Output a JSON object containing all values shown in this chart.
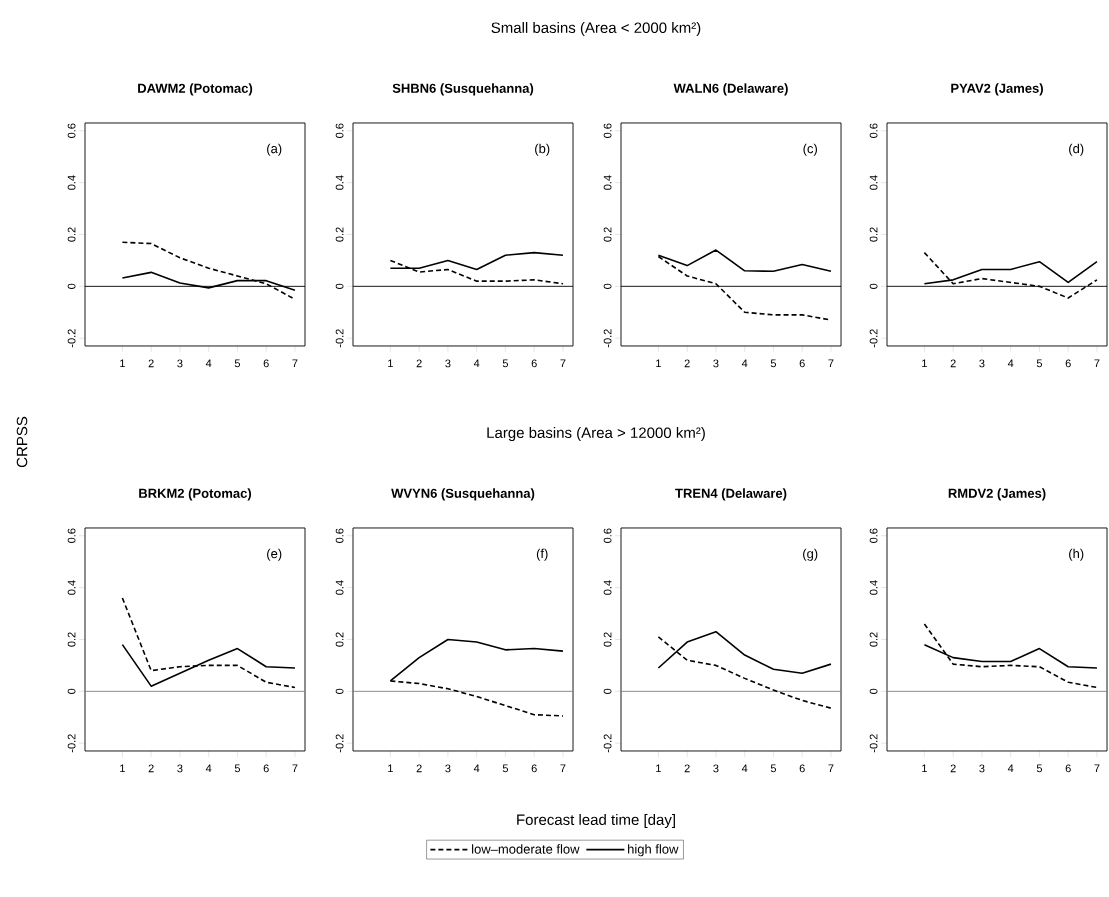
{
  "chart_data": [
    {
      "type": "other",
      "annotations": [
        "Small basins (Area < 2000 km²)",
        "Large basins (Area > 12000 km²)"
      ],
      "xlabel": "Forecast lead time [day]",
      "ylabel": "CRPSS"
    },
    {
      "type": "line",
      "title": "DAWM2 (Potomac)",
      "annotations": [
        "(a)"
      ],
      "x": [
        1,
        2,
        3,
        4,
        5,
        6,
        7
      ],
      "xlim": [
        -0.3,
        7.35
      ],
      "ylim": [
        -0.23,
        0.63
      ],
      "xticks": [
        1,
        2,
        3,
        4,
        5,
        6,
        7
      ],
      "yticks": [
        -0.2,
        0,
        0.2,
        0.4,
        0.6
      ],
      "legend": "bottom",
      "ref_lines": [
        {
          "axis": "y",
          "value": 0,
          "color": "#000000"
        }
      ],
      "series": [
        {
          "name": "low–moderate flow",
          "color": "#000000",
          "line_style": "dashed",
          "values": [
            0.17,
            0.165,
            0.11,
            0.07,
            0.04,
            0.01,
            -0.05
          ]
        },
        {
          "name": "high flow",
          "color": "#000000",
          "line_style": "solid",
          "values": [
            0.032,
            0.054,
            0.013,
            -0.006,
            0.022,
            0.022,
            -0.015
          ]
        }
      ]
    },
    {
      "type": "line",
      "title": "SHBN6 (Susquehanna)",
      "annotations": [
        "(b)"
      ],
      "x": [
        1,
        2,
        3,
        4,
        5,
        6,
        7
      ],
      "xlim": [
        -0.3,
        7.35
      ],
      "ylim": [
        -0.23,
        0.63
      ],
      "xticks": [
        1,
        2,
        3,
        4,
        5,
        6,
        7
      ],
      "yticks": [
        -0.2,
        0,
        0.2,
        0.4,
        0.6
      ],
      "ref_lines": [
        {
          "axis": "y",
          "value": 0,
          "color": "#000000"
        }
      ],
      "series": [
        {
          "color": "#000000",
          "line_style": "dashed",
          "values": [
            0.1,
            0.055,
            0.065,
            0.02,
            0.02,
            0.025,
            0.01
          ]
        },
        {
          "color": "#000000",
          "line_style": "solid",
          "values": [
            0.07,
            0.07,
            0.1,
            0.065,
            0.12,
            0.13,
            0.12
          ]
        }
      ]
    },
    {
      "type": "line",
      "title": "WALN6 (Delaware)",
      "annotations": [
        "(c)"
      ],
      "x": [
        1,
        2,
        3,
        4,
        5,
        6,
        7
      ],
      "xlim": [
        -0.3,
        7.35
      ],
      "ylim": [
        -0.23,
        0.63
      ],
      "xticks": [
        1,
        2,
        3,
        4,
        5,
        6,
        7
      ],
      "yticks": [
        -0.2,
        0,
        0.2,
        0.4,
        0.6
      ],
      "ref_lines": [
        {
          "axis": "y",
          "value": 0,
          "color": "#000000"
        }
      ],
      "series": [
        {
          "color": "#000000",
          "line_style": "dashed",
          "values": [
            0.115,
            0.04,
            0.01,
            -0.1,
            -0.11,
            -0.11,
            -0.13
          ]
        },
        {
          "color": "#000000",
          "line_style": "solid",
          "values": [
            0.12,
            0.08,
            0.14,
            0.06,
            0.058,
            0.084,
            0.058
          ]
        }
      ]
    },
    {
      "type": "line",
      "title": "PYAV2 (James)",
      "annotations": [
        "(d)"
      ],
      "x": [
        1,
        2,
        3,
        4,
        5,
        6,
        7
      ],
      "xlim": [
        -0.3,
        7.35
      ],
      "ylim": [
        -0.23,
        0.63
      ],
      "xticks": [
        1,
        2,
        3,
        4,
        5,
        6,
        7
      ],
      "yticks": [
        -0.2,
        0,
        0.2,
        0.4,
        0.6
      ],
      "ref_lines": [
        {
          "axis": "y",
          "value": 0,
          "color": "#000000"
        }
      ],
      "series": [
        {
          "color": "#000000",
          "line_style": "dashed",
          "values": [
            0.13,
            0.01,
            0.03,
            0.015,
            0.0,
            -0.045,
            0.025
          ]
        },
        {
          "color": "#000000",
          "line_style": "solid",
          "values": [
            0.01,
            0.025,
            0.065,
            0.065,
            0.095,
            0.015,
            0.095
          ]
        }
      ]
    },
    {
      "type": "line",
      "title": "BRKM2 (Potomac)",
      "annotations": [
        "(e)"
      ],
      "x": [
        1,
        2,
        3,
        4,
        5,
        6,
        7
      ],
      "xlim": [
        -0.3,
        7.35
      ],
      "ylim": [
        -0.23,
        0.63
      ],
      "xticks": [
        1,
        2,
        3,
        4,
        5,
        6,
        7
      ],
      "yticks": [
        -0.2,
        0,
        0.2,
        0.4,
        0.6
      ],
      "ref_lines": [
        {
          "axis": "y",
          "value": 0,
          "color": "#808080"
        }
      ],
      "series": [
        {
          "color": "#000000",
          "line_style": "dashed",
          "values": [
            0.36,
            0.08,
            0.095,
            0.1,
            0.1,
            0.035,
            0.015
          ]
        },
        {
          "color": "#000000",
          "line_style": "solid",
          "values": [
            0.18,
            0.02,
            0.07,
            0.12,
            0.165,
            0.095,
            0.09
          ]
        }
      ]
    },
    {
      "type": "line",
      "title": "WVYN6 (Susquehanna)",
      "annotations": [
        "(f)"
      ],
      "x": [
        1,
        2,
        3,
        4,
        5,
        6,
        7
      ],
      "xlim": [
        -0.3,
        7.35
      ],
      "ylim": [
        -0.23,
        0.63
      ],
      "xticks": [
        1,
        2,
        3,
        4,
        5,
        6,
        7
      ],
      "yticks": [
        -0.2,
        0,
        0.2,
        0.4,
        0.6
      ],
      "ref_lines": [
        {
          "axis": "y",
          "value": 0,
          "color": "#808080"
        }
      ],
      "series": [
        {
          "color": "#000000",
          "line_style": "dashed",
          "values": [
            0.04,
            0.03,
            0.01,
            -0.02,
            -0.055,
            -0.09,
            -0.095
          ]
        },
        {
          "color": "#000000",
          "line_style": "solid",
          "values": [
            0.04,
            0.13,
            0.2,
            0.19,
            0.16,
            0.165,
            0.155
          ]
        }
      ]
    },
    {
      "type": "line",
      "title": "TREN4 (Delaware)",
      "annotations": [
        "(g)"
      ],
      "x": [
        1,
        2,
        3,
        4,
        5,
        6,
        7
      ],
      "xlim": [
        -0.3,
        7.35
      ],
      "ylim": [
        -0.23,
        0.63
      ],
      "xticks": [
        1,
        2,
        3,
        4,
        5,
        6,
        7
      ],
      "yticks": [
        -0.2,
        0,
        0.2,
        0.4,
        0.6
      ],
      "ref_lines": [
        {
          "axis": "y",
          "value": 0,
          "color": "#808080"
        }
      ],
      "series": [
        {
          "color": "#000000",
          "line_style": "dashed",
          "values": [
            0.21,
            0.12,
            0.1,
            0.05,
            0.005,
            -0.035,
            -0.065
          ]
        },
        {
          "color": "#000000",
          "line_style": "solid",
          "values": [
            0.09,
            0.19,
            0.23,
            0.14,
            0.085,
            0.07,
            0.105
          ]
        }
      ]
    },
    {
      "type": "line",
      "title": "RMDV2 (James)",
      "annotations": [
        "(h)"
      ],
      "x": [
        1,
        2,
        3,
        4,
        5,
        6,
        7
      ],
      "xlim": [
        -0.3,
        7.35
      ],
      "ylim": [
        -0.23,
        0.63
      ],
      "xticks": [
        1,
        2,
        3,
        4,
        5,
        6,
        7
      ],
      "yticks": [
        -0.2,
        0,
        0.2,
        0.4,
        0.6
      ],
      "ref_lines": [
        {
          "axis": "y",
          "value": 0,
          "color": "#808080"
        }
      ],
      "series": [
        {
          "color": "#000000",
          "line_style": "dashed",
          "values": [
            0.26,
            0.105,
            0.095,
            0.1,
            0.095,
            0.035,
            0.015
          ]
        },
        {
          "color": "#000000",
          "line_style": "solid",
          "values": [
            0.18,
            0.13,
            0.115,
            0.115,
            0.165,
            0.095,
            0.09
          ]
        }
      ]
    }
  ]
}
